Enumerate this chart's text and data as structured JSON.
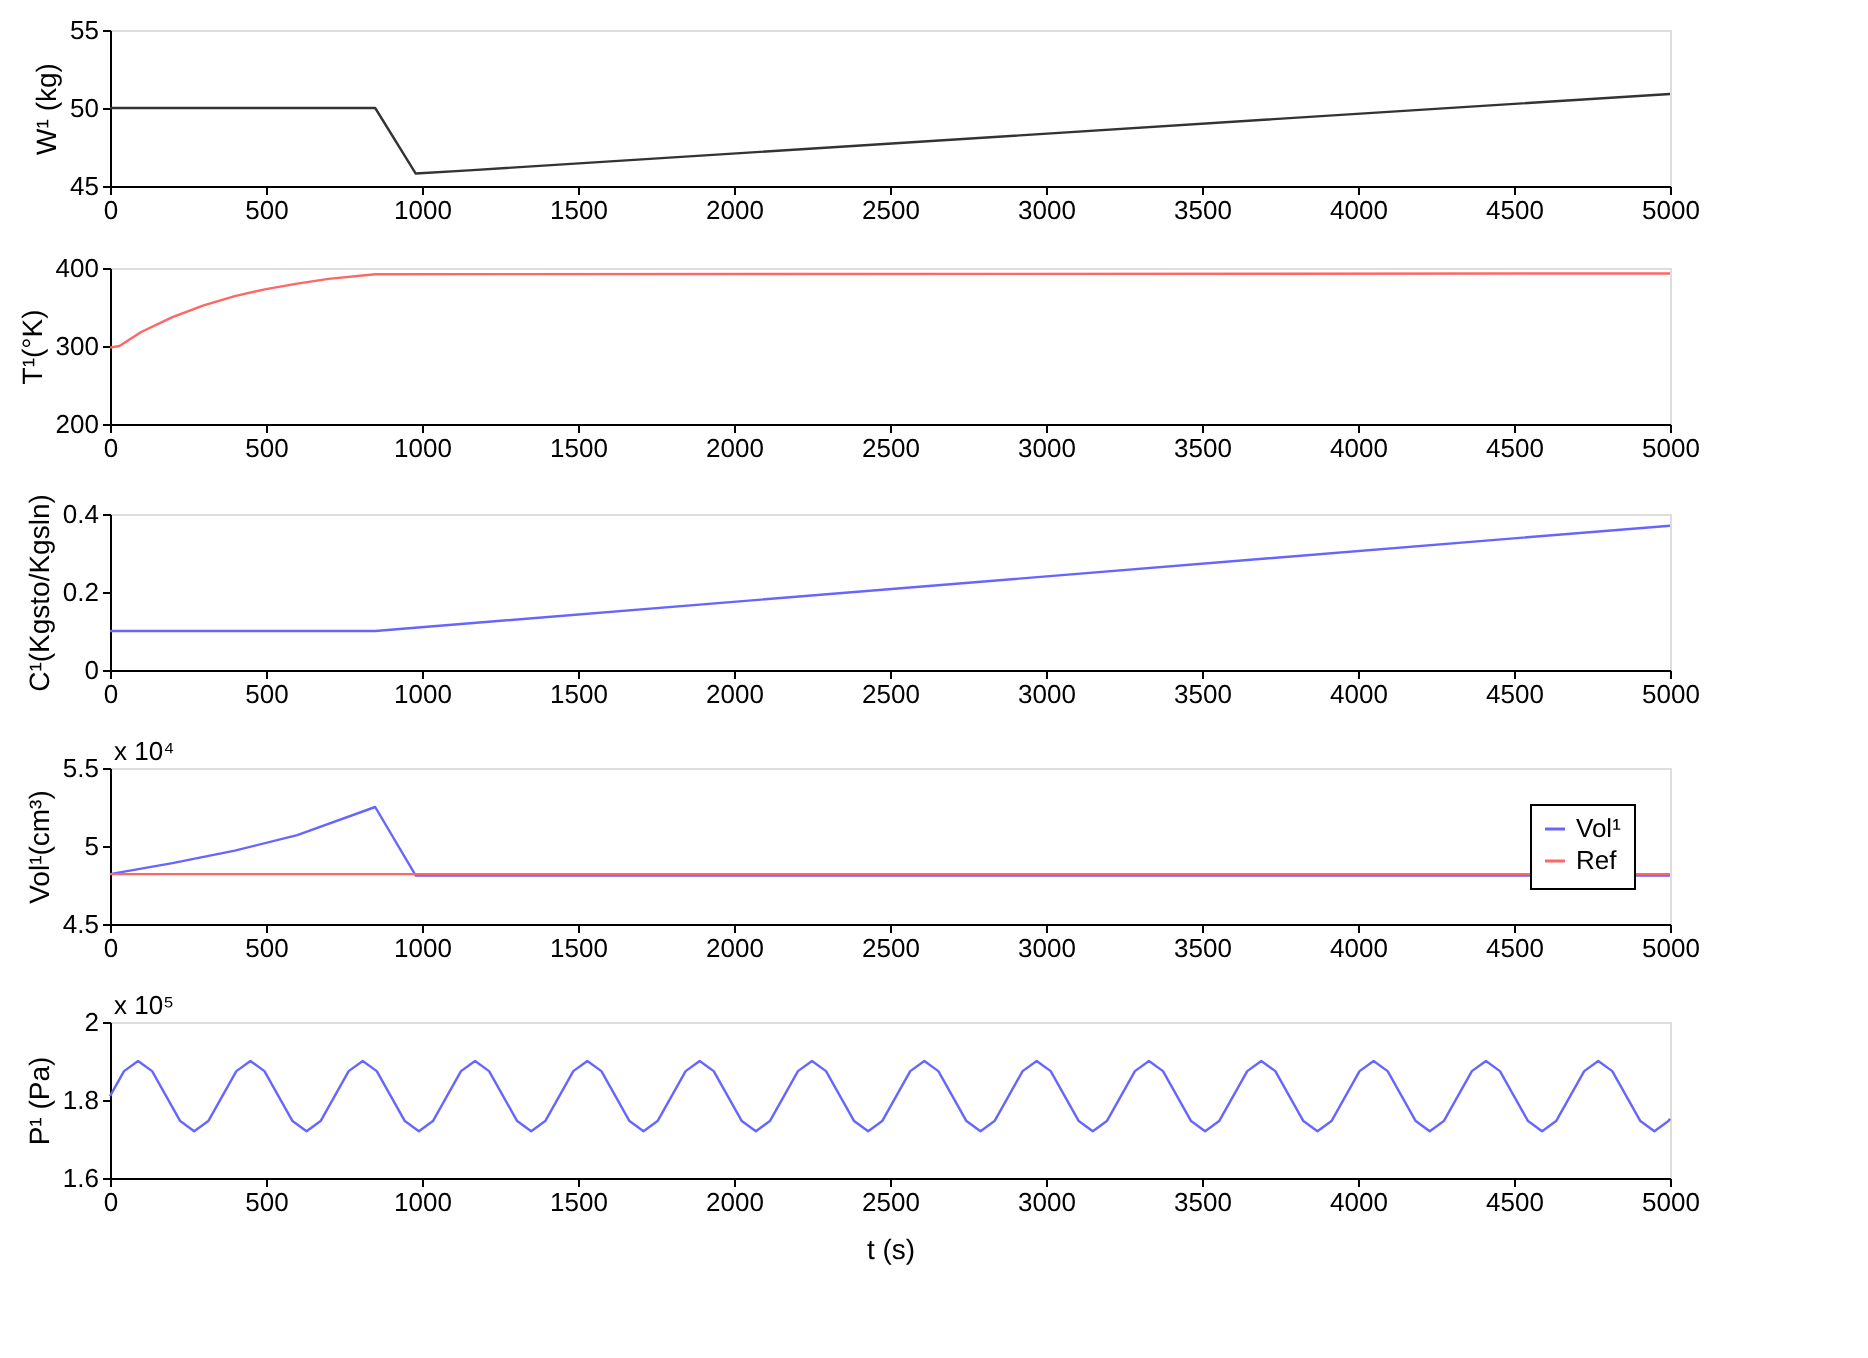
{
  "chart_data": [
    {
      "type": "line",
      "ylabel": "W¹ (kg)",
      "xlim": [
        0,
        5000
      ],
      "xticks": [
        0,
        500,
        1000,
        1500,
        2000,
        2500,
        3000,
        3500,
        4000,
        4500,
        5000
      ],
      "ylim": [
        45,
        55
      ],
      "yticks": [
        45,
        50,
        55
      ],
      "grid": false,
      "legend": false,
      "series": [
        {
          "color": "#333333",
          "x": [
            0,
            850,
            980,
            1150,
            5000
          ],
          "values": [
            50,
            50,
            45.8,
            46.0,
            50.9
          ]
        }
      ]
    },
    {
      "type": "line",
      "ylabel": "T¹(°K)",
      "xlim": [
        0,
        5000
      ],
      "xticks": [
        0,
        500,
        1000,
        1500,
        2000,
        2500,
        3000,
        3500,
        4000,
        4500,
        5000
      ],
      "ylim": [
        200,
        400
      ],
      "yticks": [
        200,
        300,
        400
      ],
      "grid": false,
      "legend": false,
      "series": [
        {
          "color": "#ff6666",
          "x": [
            0,
            30,
            100,
            200,
            300,
            400,
            500,
            600,
            700,
            850,
            5000
          ],
          "values": [
            298,
            300,
            318,
            337,
            352,
            364,
            373,
            380,
            386,
            392,
            393
          ]
        }
      ]
    },
    {
      "type": "line",
      "ylabel": "C¹(Kgsto/Kgsln)",
      "xlim": [
        0,
        5000
      ],
      "xticks": [
        0,
        500,
        1000,
        1500,
        2000,
        2500,
        3000,
        3500,
        4000,
        4500,
        5000
      ],
      "ylim": [
        0,
        0.4
      ],
      "yticks": [
        0,
        0.2,
        0.4
      ],
      "grid": false,
      "legend": false,
      "series": [
        {
          "color": "#6666ff",
          "x": [
            0,
            850,
            5000
          ],
          "values": [
            0.1,
            0.1,
            0.37
          ]
        }
      ]
    },
    {
      "type": "line",
      "ylabel": "Vol¹(cm³)",
      "annotations": [
        "x 10⁴"
      ],
      "xlim": [
        0,
        5000
      ],
      "xticks": [
        0,
        500,
        1000,
        1500,
        2000,
        2500,
        3000,
        3500,
        4000,
        4500,
        5000
      ],
      "ylim": [
        4.5,
        5.5
      ],
      "yticks": [
        4.5,
        5,
        5.5
      ],
      "grid": false,
      "legend": "top right",
      "series": [
        {
          "name": "Vol¹",
          "color": "#6666ff",
          "x": [
            0,
            200,
            400,
            600,
            850,
            980,
            5000
          ],
          "values": [
            4.82,
            4.89,
            4.97,
            5.07,
            5.25,
            4.81,
            4.81
          ]
        },
        {
          "name": "Ref",
          "color": "#ff6666",
          "x": [
            0,
            5000
          ],
          "values": [
            4.82,
            4.82
          ]
        }
      ]
    },
    {
      "type": "line",
      "ylabel": "P¹ (Pa)",
      "xlabel": "t (s)",
      "annotations": [
        "x 10⁵"
      ],
      "xlim": [
        0,
        5000
      ],
      "xticks": [
        0,
        500,
        1000,
        1500,
        2000,
        2500,
        3000,
        3500,
        4000,
        4500,
        5000
      ],
      "ylim": [
        1.6,
        2
      ],
      "yticks": [
        1.6,
        1.8,
        2
      ],
      "grid": false,
      "legend": false,
      "series": [
        {
          "color": "#6666ff",
          "x": [
            0,
            45,
            90,
            135,
            180,
            225,
            270,
            315,
            360,
            405,
            450,
            495,
            540,
            585,
            630,
            675,
            720,
            765,
            810,
            855,
            900,
            945,
            990,
            1035,
            1080,
            1125,
            1170,
            1215,
            1260,
            1305,
            1350,
            1395,
            1440,
            1485,
            1530,
            1575,
            1620,
            1665,
            1710,
            1755,
            1800,
            1845,
            1890,
            1935,
            1980,
            2025,
            2070,
            2115,
            2160,
            2205,
            2250,
            2295,
            2340,
            2385,
            2430,
            2475,
            2520,
            2565,
            2610,
            2655,
            2700,
            2745,
            2790,
            2835,
            2880,
            2925,
            2970,
            3015,
            3060,
            3105,
            3150,
            3195,
            3240,
            3285,
            3330,
            3375,
            3420,
            3465,
            3510,
            3555,
            3600,
            3645,
            3690,
            3735,
            3780,
            3825,
            3870,
            3915,
            3960,
            4005,
            4050,
            4095,
            4140,
            4185,
            4230,
            4275,
            4320,
            4365,
            4410,
            4455,
            4500,
            4545,
            4590,
            4635,
            4680,
            4725,
            4770,
            4815,
            4860,
            4905,
            4950,
            4995,
            5000
          ],
          "values": [
            1.81,
            1.874,
            1.9,
            1.874,
            1.81,
            1.746,
            1.72,
            1.746,
            1.81,
            1.874,
            1.9,
            1.874,
            1.81,
            1.746,
            1.72,
            1.746,
            1.81,
            1.874,
            1.9,
            1.874,
            1.81,
            1.746,
            1.72,
            1.746,
            1.81,
            1.874,
            1.9,
            1.874,
            1.81,
            1.746,
            1.72,
            1.746,
            1.81,
            1.874,
            1.9,
            1.874,
            1.81,
            1.746,
            1.72,
            1.746,
            1.81,
            1.874,
            1.9,
            1.874,
            1.81,
            1.746,
            1.72,
            1.746,
            1.81,
            1.874,
            1.9,
            1.874,
            1.81,
            1.746,
            1.72,
            1.746,
            1.81,
            1.874,
            1.9,
            1.874,
            1.81,
            1.746,
            1.72,
            1.746,
            1.81,
            1.874,
            1.9,
            1.874,
            1.81,
            1.746,
            1.72,
            1.746,
            1.81,
            1.874,
            1.9,
            1.874,
            1.81,
            1.746,
            1.72,
            1.746,
            1.81,
            1.874,
            1.9,
            1.874,
            1.81,
            1.746,
            1.72,
            1.746,
            1.81,
            1.874,
            1.9,
            1.874,
            1.81,
            1.746,
            1.72,
            1.746,
            1.81,
            1.874,
            1.9,
            1.874,
            1.81,
            1.746,
            1.72,
            1.746,
            1.81,
            1.874,
            1.9,
            1.874,
            1.81,
            1.746,
            1.72,
            1.746,
            1.752
          ]
        }
      ]
    }
  ]
}
